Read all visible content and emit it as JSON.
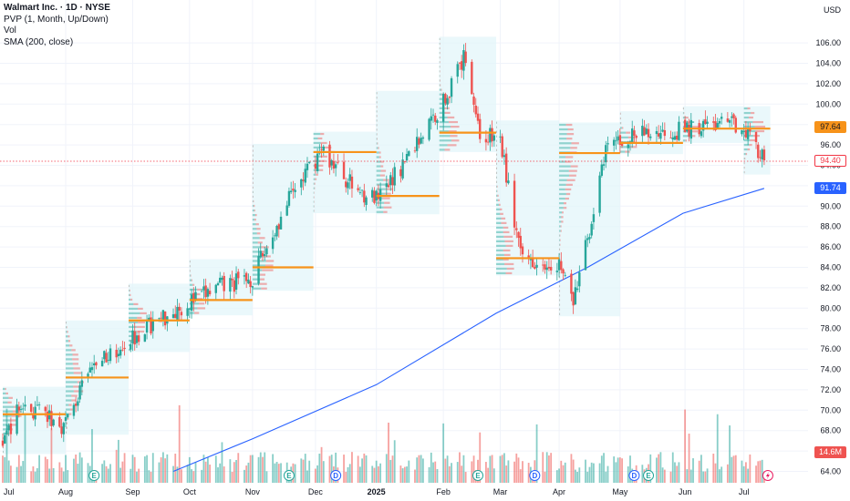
{
  "legend": {
    "title": "Walmart Inc. · 1D · NYSE",
    "line2": "PVP (1, Month, Up/Down)",
    "line3": "Vol",
    "line4": "SMA (200, close)"
  },
  "currency": "USD",
  "colors": {
    "up": "#26a69a",
    "down": "#ef5350",
    "poc": "#f7931a",
    "sma": "#2962ff",
    "profile_bg": "#e3f5fa",
    "grid": "#f0f3fa",
    "last_price": "#f23645",
    "sma_tag": "#2962ff",
    "poc_tag": "#f7931a"
  },
  "tags": {
    "poc": "97.64",
    "last": "94.40",
    "sma": "91.74",
    "volume": "14.6M"
  },
  "chart_data": {
    "type": "candlestick",
    "title": "Walmart Inc. · 1D · NYSE",
    "y_axis": {
      "min": 64,
      "max": 106,
      "ticks": [
        "64.00",
        "66.00",
        "68.00",
        "70.00",
        "72.00",
        "74.00",
        "76.00",
        "78.00",
        "80.00",
        "82.00",
        "84.00",
        "86.00",
        "88.00",
        "90.00",
        "92.00",
        "94.00",
        "96.00",
        "98.00",
        "100.00",
        "102.00",
        "104.00",
        "106.00"
      ]
    },
    "x_labels": [
      "Jul",
      "Aug",
      "Sep",
      "Oct",
      "Nov",
      "Dec",
      "2025",
      "Feb",
      "Mar",
      "Apr",
      "May",
      "Jun",
      "Jul"
    ],
    "price_anchors": {
      "dates": [
        "2024-07-01",
        "2024-07-10",
        "2024-07-31",
        "2024-08-15",
        "2024-09-01",
        "2024-09-15",
        "2024-10-01",
        "2024-10-15",
        "2024-11-01",
        "2024-11-20",
        "2024-12-05",
        "2024-12-20",
        "2025-01-02",
        "2025-01-20",
        "2025-02-01",
        "2025-02-14",
        "2025-02-21",
        "2025-03-03",
        "2025-03-13",
        "2025-04-01",
        "2025-04-08",
        "2025-04-25",
        "2025-05-10",
        "2025-06-01",
        "2025-06-15",
        "2025-07-01",
        "2025-07-11"
      ],
      "values": [
        67.0,
        70.5,
        68.5,
        74.5,
        77.0,
        78.8,
        80.6,
        82.0,
        83.0,
        91.0,
        95.5,
        92.0,
        90.5,
        96.0,
        99.5,
        104.8,
        97.0,
        96.5,
        85.0,
        84.5,
        80.5,
        96.0,
        97.0,
        97.5,
        98.0,
        98.0,
        94.4
      ]
    },
    "sma200": {
      "dates": [
        "2024-09-23",
        "2024-11-01",
        "2025-01-01",
        "2025-03-01",
        "2025-04-15",
        "2025-06-01",
        "2025-07-11"
      ],
      "values": [
        64.0,
        67.2,
        72.5,
        79.5,
        84.0,
        89.3,
        91.74
      ]
    },
    "monthly_poc": [
      {
        "start": "2024-07-01",
        "end": "2024-08-01",
        "price": 69.6
      },
      {
        "start": "2024-08-01",
        "end": "2024-09-01",
        "price": 73.2
      },
      {
        "start": "2024-09-01",
        "end": "2024-10-01",
        "price": 78.8
      },
      {
        "start": "2024-10-01",
        "end": "2024-11-01",
        "price": 80.8
      },
      {
        "start": "2024-11-01",
        "end": "2024-12-01",
        "price": 84.0
      },
      {
        "start": "2024-12-01",
        "end": "2025-01-01",
        "price": 95.3
      },
      {
        "start": "2025-01-01",
        "end": "2025-02-01",
        "price": 91.0
      },
      {
        "start": "2025-02-01",
        "end": "2025-03-01",
        "price": 97.2
      },
      {
        "start": "2025-03-01",
        "end": "2025-04-01",
        "price": 84.9
      },
      {
        "start": "2025-04-01",
        "end": "2025-05-01",
        "price": 95.2
      },
      {
        "start": "2025-05-01",
        "end": "2025-06-01",
        "price": 96.2
      },
      {
        "start": "2025-06-01",
        "end": "2025-07-01",
        "price": 97.6
      },
      {
        "start": "2025-07-01",
        "end": "2025-07-14",
        "price": 97.6
      }
    ],
    "volume_unit": "M",
    "last_volume": 14.6,
    "last_price": 94.4,
    "events": [
      {
        "date": "2024-08-15",
        "letter": "E"
      },
      {
        "date": "2024-11-19",
        "letter": "E"
      },
      {
        "date": "2024-12-12",
        "letter": "D"
      },
      {
        "date": "2025-02-20",
        "letter": "E"
      },
      {
        "date": "2025-03-20",
        "letter": "D"
      },
      {
        "date": "2025-05-08",
        "letter": "D"
      },
      {
        "date": "2025-05-15",
        "letter": "E"
      }
    ]
  }
}
